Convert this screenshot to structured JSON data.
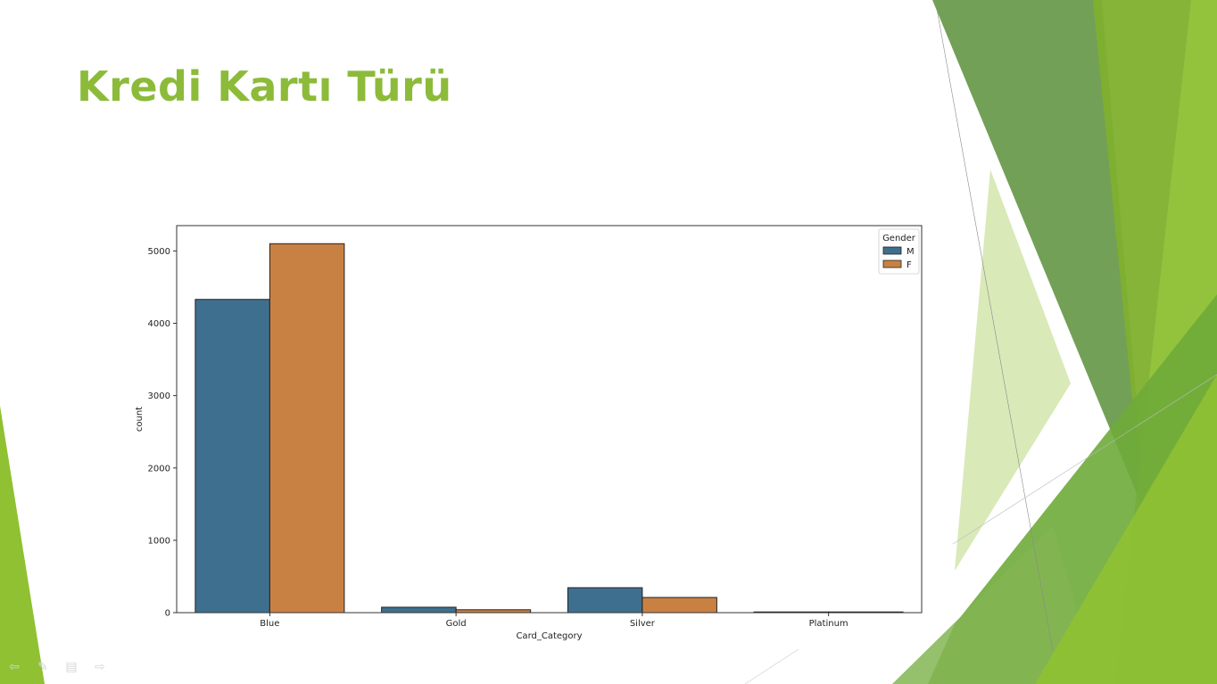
{
  "slide": {
    "title": "Kredi Kartı Türü",
    "accent_color": "#8cbb3a"
  },
  "chart_data": {
    "type": "bar",
    "title": "",
    "xlabel": "Card_Category",
    "ylabel": "count",
    "categories": [
      "Blue",
      "Gold",
      "Silver",
      "Platinum"
    ],
    "ylim": [
      0,
      5350
    ],
    "yticks": [
      0,
      1000,
      2000,
      3000,
      4000,
      5000
    ],
    "grid": false,
    "legend": {
      "title": "Gender",
      "placement": "top-right"
    },
    "series": [
      {
        "name": "M",
        "color": "#3f6f8f",
        "values": [
          4330,
          75,
          345,
          10
        ]
      },
      {
        "name": "F",
        "color": "#c98143",
        "values": [
          5100,
          40,
          210,
          10
        ]
      }
    ]
  },
  "nav": {
    "icons": [
      "back-arrow-icon",
      "pen-icon",
      "menu-icon",
      "forward-arrow-icon"
    ],
    "glyphs": [
      "⇦",
      "✎",
      "▤",
      "⇨"
    ]
  }
}
